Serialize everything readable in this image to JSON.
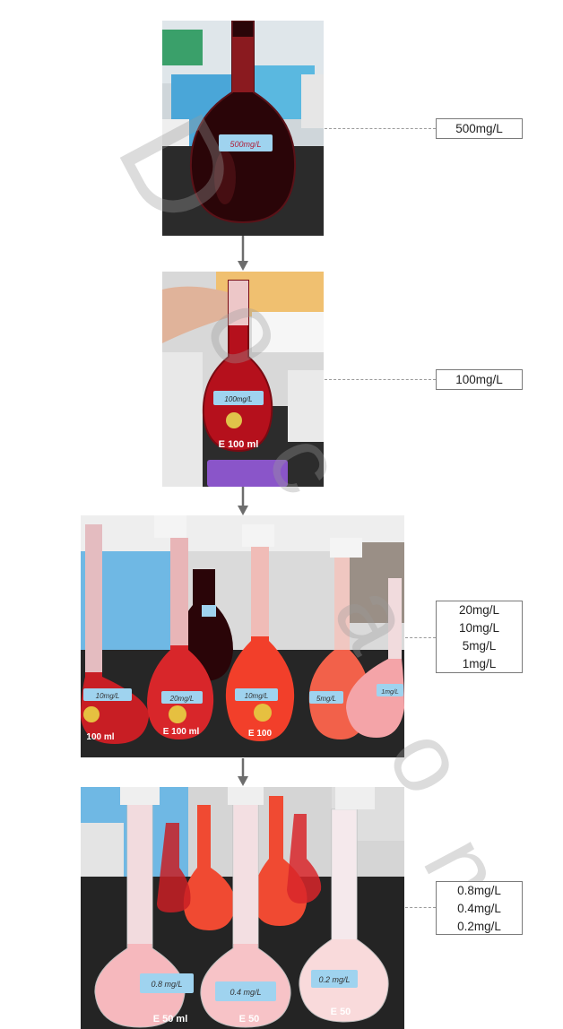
{
  "labels": {
    "step1": [
      "500mg/L"
    ],
    "step2": [
      "100mg/L"
    ],
    "step3": [
      "20mg/L",
      "10mg/L",
      "5mg/L",
      "1mg/L"
    ],
    "step4": [
      "0.8mg/L",
      "0.4mg/L",
      "0.2mg/L"
    ]
  },
  "flask_labels": {
    "step1": "500mg/L",
    "step2": "100mg/L",
    "step2_marking": "E 100 ml",
    "step3": [
      "10mg/L",
      "20mg/L",
      "10mg/L",
      "5mg/L",
      "1mg/L"
    ],
    "step3_markings": [
      "100 ml",
      "E 100 ml",
      "E 100"
    ],
    "step4": [
      "0.8 mg/L",
      "0.4 mg/L",
      "0.2 mg/L"
    ],
    "step4_markings": [
      "E 50 ml",
      "E 50",
      "E 50"
    ]
  },
  "colors": {
    "dark_red": "#3a0a10",
    "red": "#c81e24",
    "orange_red": "#f04a32",
    "pink": "#f6b3b8",
    "label_blue": "#9fd3ef",
    "bench": "#2a2a2a",
    "watermark": "#c8c8c8"
  }
}
